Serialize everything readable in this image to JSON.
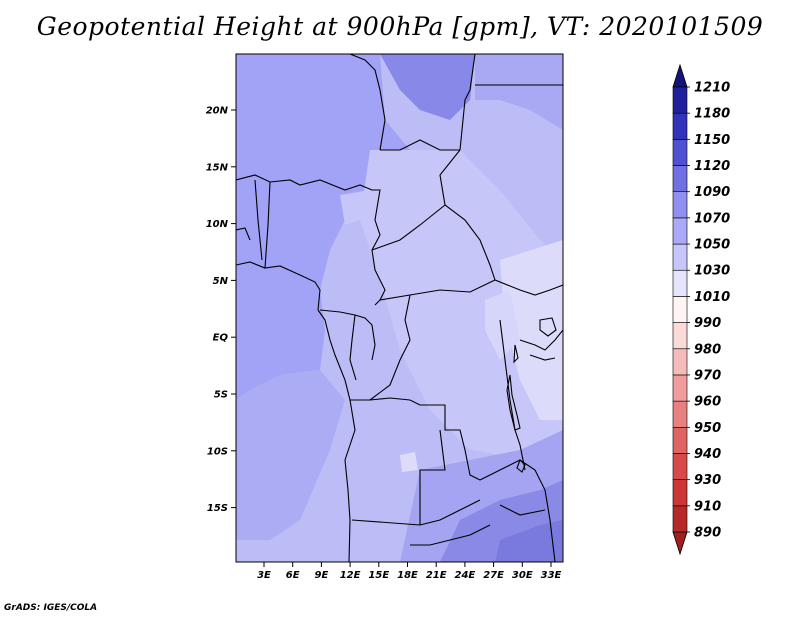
{
  "title": "Geopotential Height at 900hPa [gpm], VT: 2020101509",
  "credit": "GrADS: IGES/COLA",
  "map": {
    "variable": "Geopotential Height",
    "level": "900hPa",
    "units": "gpm",
    "valid_time": "2020101509",
    "lat_labels": [
      "20N",
      "15N",
      "10N",
      "5N",
      "EQ",
      "5S",
      "10S",
      "15S"
    ],
    "lon_labels": [
      "3E",
      "6E",
      "9E",
      "12E",
      "15E",
      "18E",
      "21E",
      "24E",
      "27E",
      "30E",
      "33E"
    ]
  },
  "colorbar": {
    "levels": [
      "890",
      "910",
      "930",
      "940",
      "950",
      "960",
      "970",
      "980",
      "990",
      "1010",
      "1030",
      "1050",
      "1070",
      "1090",
      "1120",
      "1150",
      "1180",
      "1210"
    ],
    "colors": [
      "#a01f1f",
      "#b72828",
      "#cc3636",
      "#d84a4a",
      "#e06464",
      "#e88080",
      "#f09c9c",
      "#f6bcbc",
      "#fbdada",
      "#fff4f4",
      "#e4e4fc",
      "#c6c6fa",
      "#aaaaf8",
      "#9090f0",
      "#7070e2",
      "#5050d2",
      "#3232b8",
      "#20209c",
      "#141478"
    ]
  }
}
